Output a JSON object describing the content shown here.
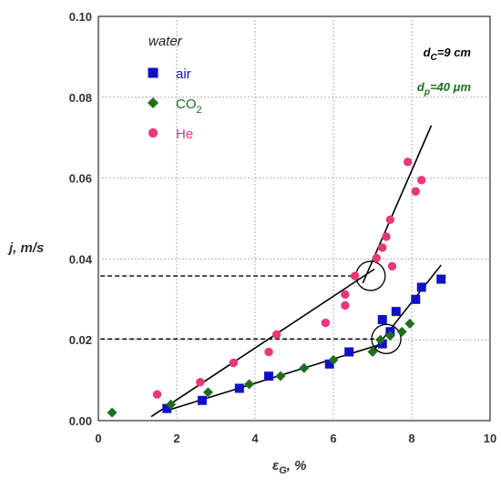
{
  "chart_data": {
    "type": "scatter",
    "xlabel": "ε",
    "xlabel_sub": "G",
    "xlabel_suffix": ", %",
    "ylabel": "j, m/s",
    "xlim": [
      0,
      10
    ],
    "ylim": [
      0,
      0.1
    ],
    "x_ticks": [
      "0",
      "2",
      "4",
      "6",
      "8",
      "10"
    ],
    "y_ticks": [
      "0.00",
      "0.02",
      "0.04",
      "0.06",
      "0.08",
      "0.10"
    ],
    "grid": true,
    "legend": {
      "title": "water",
      "placement": "top-left",
      "entries": [
        {
          "label": "air",
          "sub": "",
          "marker": "square",
          "color": "#1010c8"
        },
        {
          "label": "CO",
          "sub": "2",
          "marker": "diamond",
          "color": "#1e6e1e"
        },
        {
          "label": "He",
          "sub": "",
          "marker": "circle",
          "color": "#e8387a"
        }
      ]
    },
    "annotations": [
      {
        "main": "d",
        "sub": "C",
        "rest": "=9 cm",
        "color": "#000000"
      },
      {
        "main": "d",
        "sub": "p",
        "rest": "=40 μm",
        "color": "#1e6e1e"
      }
    ],
    "series": [
      {
        "name": "air",
        "marker": "square",
        "color": "#1010c8",
        "x": [
          1.75,
          2.65,
          3.6,
          4.35,
          5.9,
          6.4,
          7.25,
          7.25,
          7.45,
          7.6,
          8.1,
          8.25,
          8.75
        ],
        "y": [
          0.003,
          0.005,
          0.008,
          0.011,
          0.014,
          0.017,
          0.019,
          0.025,
          0.022,
          0.027,
          0.03,
          0.033,
          0.035
        ]
      },
      {
        "name": "CO2",
        "marker": "diamond",
        "color": "#1e6e1e",
        "x": [
          0.35,
          1.85,
          2.8,
          3.85,
          4.65,
          5.25,
          6.0,
          7.0,
          7.2,
          7.45,
          7.75,
          7.95
        ],
        "y": [
          0.002,
          0.004,
          0.007,
          0.009,
          0.011,
          0.013,
          0.015,
          0.017,
          0.02,
          0.021,
          0.022,
          0.024
        ]
      },
      {
        "name": "He",
        "marker": "circle",
        "color": "#e8387a",
        "x": [
          1.5,
          2.6,
          3.45,
          4.35,
          4.55,
          5.8,
          6.3,
          6.3,
          6.55,
          7.1,
          7.25,
          7.35,
          7.45,
          7.5,
          7.9,
          8.1,
          8.25
        ],
        "y": [
          0.0065,
          0.0095,
          0.0143,
          0.017,
          0.0213,
          0.0242,
          0.0285,
          0.0312,
          0.0358,
          0.0402,
          0.0428,
          0.0455,
          0.0497,
          0.0382,
          0.064,
          0.0567,
          0.0595
        ]
      }
    ],
    "fit_lines": [
      {
        "points": [
          [
            1.35,
            0.001
          ],
          [
            7.05,
            0.0375
          ]
        ]
      },
      {
        "points": [
          [
            6.75,
            0.034
          ],
          [
            8.5,
            0.073
          ]
        ]
      },
      {
        "points": [
          [
            1.65,
            0.0022
          ],
          [
            7.25,
            0.019
          ]
        ]
      },
      {
        "points": [
          [
            7.0,
            0.017
          ],
          [
            8.75,
            0.0385
          ]
        ]
      }
    ],
    "intersection_markers": [
      {
        "x": 6.95,
        "y": 0.0358
      },
      {
        "x": 7.35,
        "y": 0.0202
      }
    ],
    "dashed_refs": [
      {
        "y": 0.0358,
        "x_start": 0.05,
        "x_end": 6.55
      },
      {
        "y": 0.0202,
        "x_start": 0.05,
        "x_end": 7.1
      }
    ]
  }
}
